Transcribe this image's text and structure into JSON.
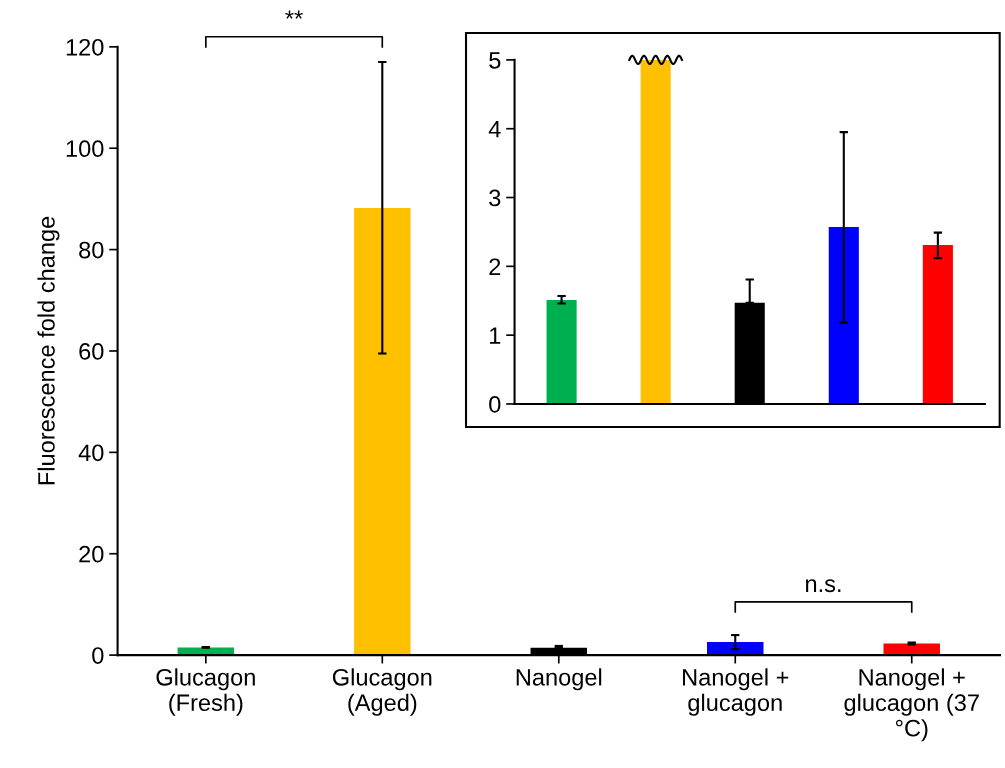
{
  "chart_data": [
    {
      "type": "bar",
      "ylabel": "Fluorescence fold change",
      "categories": [
        "Glucagon\n(Fresh)",
        "Glucagon\n(Aged)",
        "Nanogel",
        "Nanogel +\nglucagon",
        "Nanogel +\nglucagon (37\n°C)"
      ],
      "values": [
        1.51,
        88.2,
        1.47,
        2.57,
        2.31
      ],
      "colors": [
        "#00b050",
        "#ffc000",
        "#000000",
        "#0000ff",
        "#ff0000"
      ],
      "errors": [
        [
          1.46,
          1.57
        ],
        [
          59.5,
          117
        ],
        [
          1.47,
          1.81
        ],
        [
          1.18,
          3.95
        ],
        [
          2.12,
          2.49
        ]
      ],
      "ylim": [
        0,
        120
      ],
      "yticks": [
        0,
        20,
        40,
        60,
        80,
        100,
        120
      ],
      "grid": false,
      "legend": false,
      "annotations": [
        "**",
        "n.s."
      ]
    },
    {
      "type": "bar",
      "categories": [
        null,
        null,
        null,
        null,
        null
      ],
      "values": [
        1.51,
        5,
        1.47,
        2.57,
        2.31
      ],
      "colors": [
        "#00b050",
        "#ffc000",
        "#000000",
        "#0000ff",
        "#ff0000"
      ],
      "errors": [
        [
          1.46,
          1.57
        ],
        null,
        [
          1.47,
          1.81
        ],
        [
          1.18,
          3.95
        ],
        [
          2.12,
          2.49
        ]
      ],
      "ylim": [
        0,
        5
      ],
      "yticks": [
        0,
        1,
        2,
        3,
        4,
        5
      ],
      "grid": false,
      "legend": false
    }
  ]
}
